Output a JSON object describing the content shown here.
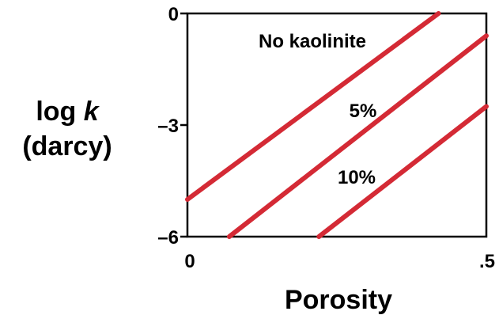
{
  "chart_data": {
    "type": "line",
    "xlabel": "Porosity",
    "ylabel_line1_prefix": "log ",
    "ylabel_line1_var": "k",
    "ylabel_line2": "(darcy)",
    "xlim": [
      0,
      0.5
    ],
    "ylim": [
      -6,
      0
    ],
    "x_ticks": [
      {
        "value": 0,
        "label": "0"
      },
      {
        "value": 0.5,
        "label": ".5"
      }
    ],
    "y_ticks": [
      {
        "value": 0,
        "label": "0"
      },
      {
        "value": -3,
        "label": "–3"
      },
      {
        "value": -6,
        "label": "–6"
      }
    ],
    "grid": false,
    "line_color": "#d42a35",
    "series": [
      {
        "name": "No kaolinite",
        "x": [
          0,
          0.42
        ],
        "y": [
          -5.0,
          0.0
        ]
      },
      {
        "name": "5%",
        "x": [
          0.07,
          0.5
        ],
        "y": [
          -6.0,
          -0.6
        ]
      },
      {
        "name": "10%",
        "x": [
          0.22,
          0.5
        ],
        "y": [
          -6.0,
          -2.5
        ]
      }
    ]
  }
}
